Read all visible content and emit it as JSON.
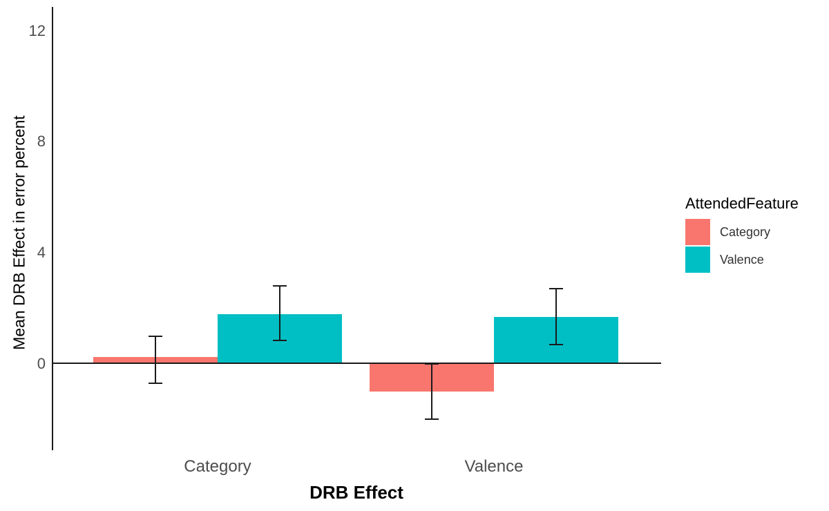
{
  "chart_data": {
    "type": "bar",
    "title": "",
    "xlabel": "DRB Effect",
    "ylabel": "Mean DRB Effect in error percent",
    "categories": [
      "Category",
      "Valence"
    ],
    "series": [
      {
        "name": "Category",
        "color": "#F8766D",
        "values": [
          0.25,
          -1.0
        ],
        "ci_low": [
          -0.7,
          -2.0
        ],
        "ci_high": [
          1.0,
          0.0
        ]
      },
      {
        "name": "Valence",
        "color": "#00BFC4",
        "values": [
          1.8,
          1.7
        ],
        "ci_low": [
          0.85,
          0.7
        ],
        "ci_high": [
          2.8,
          2.7
        ]
      }
    ],
    "error_bars": true,
    "y_ticks": [
      0,
      4,
      8,
      12
    ],
    "ylim": [
      -3.1,
      12.8
    ],
    "grid": false,
    "axis_color": "#1a1a1a",
    "tick_label_color": "#4d4d4d",
    "legend": {
      "title": "AttendedFeature",
      "entries": [
        "Category",
        "Valence"
      ],
      "position": "right"
    }
  }
}
